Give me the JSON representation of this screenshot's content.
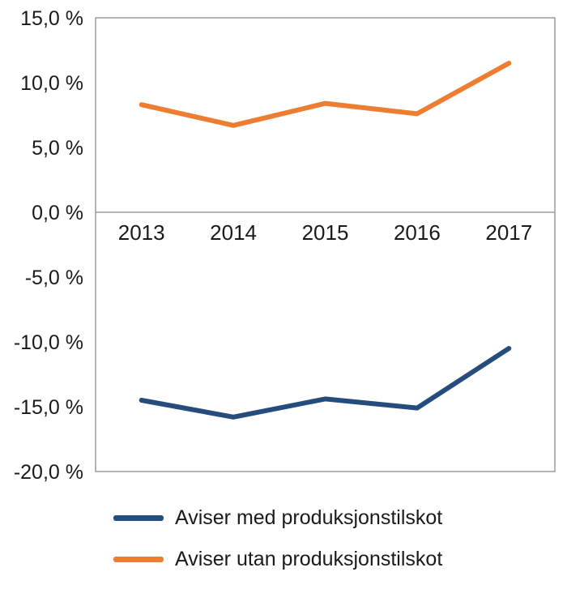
{
  "chart_data": {
    "type": "line",
    "x": [
      "2013",
      "2014",
      "2015",
      "2016",
      "2017"
    ],
    "xtick_labels": [
      "2013",
      "2014",
      "2015",
      "2016",
      "2017"
    ],
    "series": [
      {
        "name": "Aviser med produksjonstilskot",
        "color": "#264B7D",
        "values": [
          -14.5,
          -15.8,
          -14.4,
          -15.1,
          -10.5
        ]
      },
      {
        "name": "Aviser utan produksjonstilskot",
        "color": "#ED7D31",
        "values": [
          8.3,
          6.7,
          8.4,
          7.6,
          11.5
        ]
      }
    ],
    "ylim": [
      -20,
      15
    ],
    "yticks": [
      15,
      10,
      5,
      0,
      -5,
      -10,
      -15,
      -20
    ],
    "ytick_labels": [
      "15,0 %",
      "10,0 %",
      "5,0 %",
      "0,0 %",
      "-5,0 %",
      "-10,0 %",
      "-15,0 %",
      "-20,0 %"
    ],
    "title": "",
    "xlabel": "",
    "ylabel": "",
    "grid": false,
    "legend_position": "bottom-left",
    "axis_color": "#9C9C9C",
    "text_color": "#1a1a1a",
    "line_width": 6
  }
}
